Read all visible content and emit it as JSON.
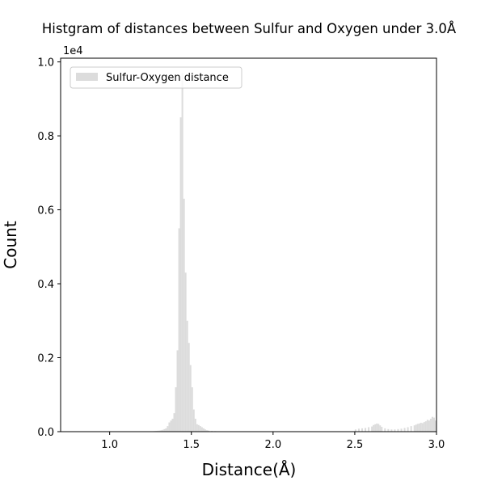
{
  "chart_data": {
    "type": "bar",
    "title": "Histgram of distances between Sulfur and Oxygen under 3.0Å",
    "xlabel": "Distance(Å)",
    "ylabel": "Count",
    "y_offset_label": "1e4",
    "y_scale": 10000,
    "xlim": [
      0.7,
      3.0
    ],
    "ylim": [
      0,
      10100
    ],
    "x_ticks": [
      1.0,
      1.5,
      2.0,
      2.5,
      3.0
    ],
    "x_tick_labels": [
      "1.0",
      "1.5",
      "2.0",
      "2.5",
      "3.0"
    ],
    "y_ticks": [
      0,
      2000,
      4000,
      6000,
      8000,
      10000
    ],
    "y_tick_labels": [
      "0.0",
      "0.2",
      "0.4",
      "0.6",
      "0.8",
      "1.0"
    ],
    "legend": {
      "label": "Sulfur-Oxygen distance",
      "position": "upper-left"
    },
    "bar_color": "#dcdcdc",
    "bin_width": 0.01,
    "series": [
      {
        "name": "Sulfur-Oxygen distance",
        "x": [
          1.24,
          1.25,
          1.26,
          1.27,
          1.28,
          1.29,
          1.3,
          1.31,
          1.32,
          1.33,
          1.34,
          1.35,
          1.36,
          1.37,
          1.38,
          1.39,
          1.4,
          1.41,
          1.42,
          1.43,
          1.44,
          1.45,
          1.46,
          1.47,
          1.48,
          1.49,
          1.5,
          1.51,
          1.52,
          1.53,
          1.54,
          1.55,
          1.56,
          1.57,
          1.58,
          1.59,
          1.6,
          1.62,
          1.64,
          1.66,
          2.5,
          2.52,
          2.54,
          2.56,
          2.58,
          2.6,
          2.61,
          2.62,
          2.63,
          2.64,
          2.65,
          2.66,
          2.68,
          2.7,
          2.72,
          2.74,
          2.76,
          2.78,
          2.8,
          2.82,
          2.84,
          2.86,
          2.87,
          2.88,
          2.89,
          2.9,
          2.91,
          2.92,
          2.93,
          2.94,
          2.95,
          2.96,
          2.97,
          2.98,
          2.99
        ],
        "values": [
          5,
          8,
          10,
          15,
          20,
          25,
          30,
          40,
          50,
          70,
          90,
          150,
          250,
          300,
          350,
          500,
          1200,
          2200,
          5500,
          8500,
          9700,
          6300,
          4300,
          3000,
          2400,
          1800,
          1200,
          600,
          350,
          200,
          180,
          150,
          120,
          90,
          60,
          40,
          30,
          20,
          15,
          10,
          60,
          80,
          90,
          100,
          120,
          140,
          180,
          200,
          220,
          210,
          170,
          130,
          90,
          70,
          60,
          60,
          70,
          80,
          100,
          120,
          150,
          170,
          190,
          210,
          220,
          240,
          230,
          260,
          280,
          320,
          300,
          350,
          400,
          380,
          300
        ]
      }
    ]
  }
}
